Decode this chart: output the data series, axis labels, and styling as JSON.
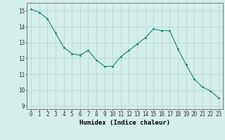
{
  "x": [
    0,
    1,
    2,
    3,
    4,
    5,
    6,
    7,
    8,
    9,
    10,
    11,
    12,
    13,
    14,
    15,
    16,
    17,
    18,
    19,
    20,
    21,
    22,
    23
  ],
  "y": [
    15.1,
    14.9,
    14.5,
    13.6,
    12.7,
    12.3,
    12.2,
    12.5,
    11.9,
    11.5,
    11.5,
    12.1,
    12.5,
    12.9,
    13.3,
    13.85,
    13.75,
    13.75,
    12.6,
    11.6,
    10.7,
    10.2,
    9.95,
    9.5
  ],
  "xlabel": "Humidex (Indice chaleur)",
  "xlim": [
    -0.5,
    23.5
  ],
  "ylim": [
    8.8,
    15.5
  ],
  "yticks": [
    9,
    10,
    11,
    12,
    13,
    14,
    15
  ],
  "xticks": [
    0,
    1,
    2,
    3,
    4,
    5,
    6,
    7,
    8,
    9,
    10,
    11,
    12,
    13,
    14,
    15,
    16,
    17,
    18,
    19,
    20,
    21,
    22,
    23
  ],
  "line_color": "#2e8b7a",
  "marker_color": "#2e8b7a",
  "bg_color": "#d4eeea",
  "grid_color": "#b8d8d4",
  "tick_fontsize": 5.5,
  "label_fontsize": 6.5
}
